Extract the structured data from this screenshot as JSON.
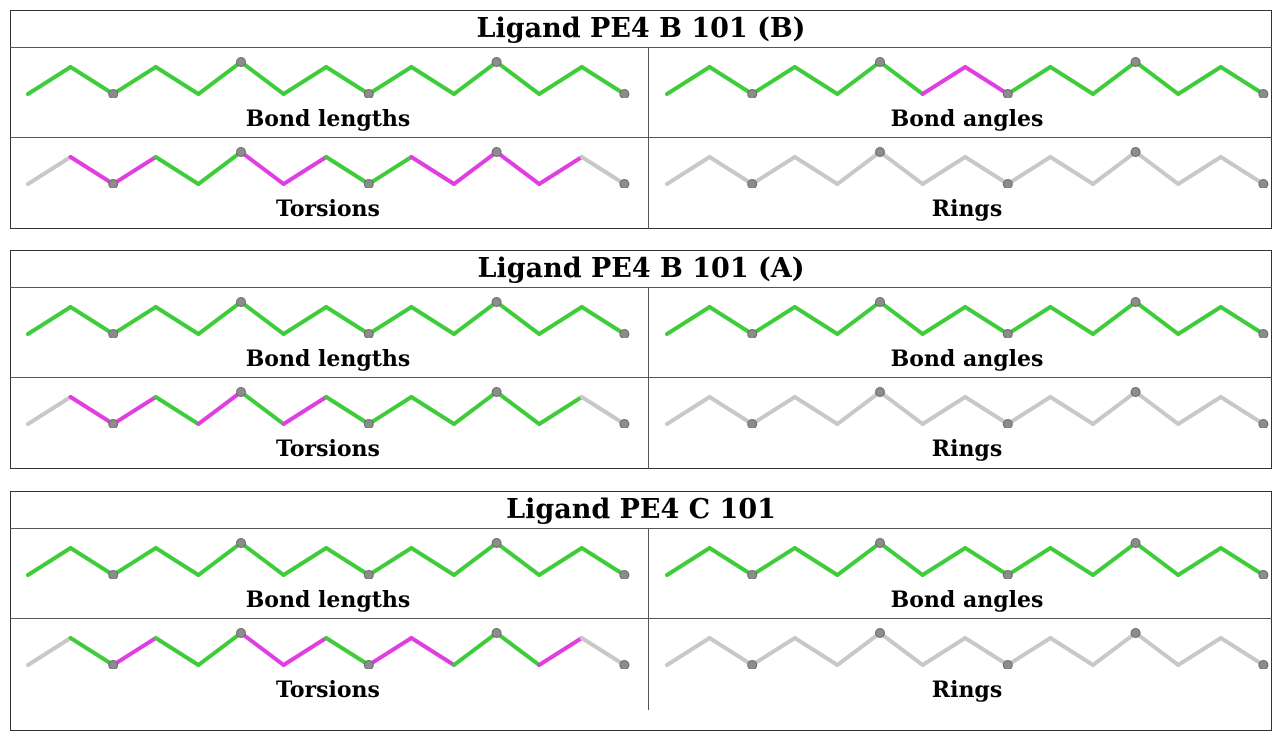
{
  "colors": {
    "ok": "#3fcc3a",
    "outlier": "#e03ee0",
    "neutral": "#c8c8c8",
    "atom": "#8c8c8c"
  },
  "panels": [
    {
      "title": "Ligand PE4 B 101 (B)",
      "cells": [
        {
          "label": "Bond lengths",
          "bonds": [
            "ok",
            "ok",
            "ok",
            "ok",
            "ok",
            "ok",
            "ok",
            "ok",
            "ok",
            "ok",
            "ok",
            "ok",
            "ok",
            "ok"
          ]
        },
        {
          "label": "Bond angles",
          "bonds": [
            "ok",
            "ok",
            "ok",
            "ok",
            "ok",
            "ok",
            "outlier",
            "outlier",
            "ok",
            "ok",
            "ok",
            "ok",
            "ok",
            "ok"
          ]
        },
        {
          "label": "Torsions",
          "bonds": [
            "neutral",
            "outlier",
            "outlier",
            "ok",
            "ok",
            "outlier",
            "outlier",
            "ok",
            "ok",
            "outlier",
            "outlier",
            "outlier",
            "outlier",
            "neutral"
          ]
        },
        {
          "label": "Rings",
          "bonds": [
            "neutral",
            "neutral",
            "neutral",
            "neutral",
            "neutral",
            "neutral",
            "neutral",
            "neutral",
            "neutral",
            "neutral",
            "neutral",
            "neutral",
            "neutral",
            "neutral"
          ]
        }
      ]
    },
    {
      "title": "Ligand PE4 B 101 (A)",
      "cells": [
        {
          "label": "Bond lengths",
          "bonds": [
            "ok",
            "ok",
            "ok",
            "ok",
            "ok",
            "ok",
            "ok",
            "ok",
            "ok",
            "ok",
            "ok",
            "ok",
            "ok",
            "ok"
          ]
        },
        {
          "label": "Bond angles",
          "bonds": [
            "ok",
            "ok",
            "ok",
            "ok",
            "ok",
            "ok",
            "ok",
            "ok",
            "ok",
            "ok",
            "ok",
            "ok",
            "ok",
            "ok"
          ]
        },
        {
          "label": "Torsions",
          "bonds": [
            "neutral",
            "outlier",
            "outlier",
            "ok",
            "outlier",
            "ok",
            "outlier",
            "ok",
            "ok",
            "ok",
            "ok",
            "ok",
            "ok",
            "neutral"
          ]
        },
        {
          "label": "Rings",
          "bonds": [
            "neutral",
            "neutral",
            "neutral",
            "neutral",
            "neutral",
            "neutral",
            "neutral",
            "neutral",
            "neutral",
            "neutral",
            "neutral",
            "neutral",
            "neutral",
            "neutral"
          ]
        }
      ]
    },
    {
      "title": "Ligand PE4 C 101",
      "cells": [
        {
          "label": "Bond lengths",
          "bonds": [
            "ok",
            "ok",
            "ok",
            "ok",
            "ok",
            "ok",
            "ok",
            "ok",
            "ok",
            "ok",
            "ok",
            "ok",
            "ok",
            "ok"
          ]
        },
        {
          "label": "Bond angles",
          "bonds": [
            "ok",
            "ok",
            "ok",
            "ok",
            "ok",
            "ok",
            "ok",
            "ok",
            "ok",
            "ok",
            "ok",
            "ok",
            "ok",
            "ok"
          ]
        },
        {
          "label": "Torsions",
          "bonds": [
            "neutral",
            "ok",
            "outlier",
            "ok",
            "ok",
            "outlier",
            "outlier",
            "ok",
            "outlier",
            "outlier",
            "ok",
            "ok",
            "outlier",
            "neutral"
          ]
        },
        {
          "label": "Rings",
          "bonds": [
            "neutral",
            "neutral",
            "neutral",
            "neutral",
            "neutral",
            "neutral",
            "neutral",
            "neutral",
            "neutral",
            "neutral",
            "neutral",
            "neutral",
            "neutral",
            "neutral"
          ]
        }
      ]
    }
  ]
}
